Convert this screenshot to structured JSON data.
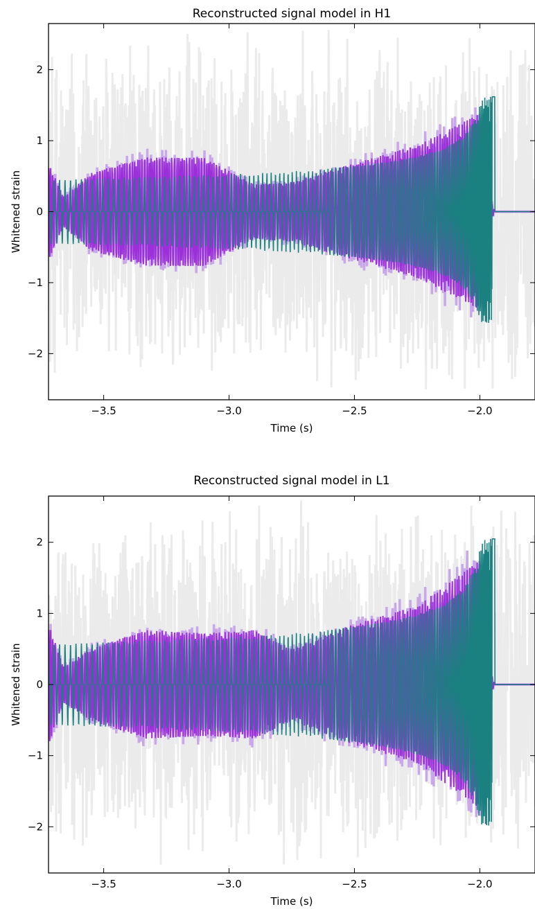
{
  "colors": {
    "noise": "#ebebeb",
    "band": "#c9a8ea",
    "signal": "#9b30d9",
    "model": "#1a8080",
    "axis": "#000000"
  },
  "chart_data": [
    {
      "type": "line",
      "title": "Reconstructed signal model in H1",
      "xlabel": "Time (s)",
      "ylabel": "Whitened strain",
      "xlim": [
        -3.72,
        -1.78
      ],
      "ylim": [
        -2.65,
        2.65
      ],
      "xticks": [
        "−3.5",
        "−3.0",
        "−2.5",
        "−2.0"
      ],
      "xtick_values": [
        -3.5,
        -3.0,
        -2.5,
        -2.0
      ],
      "yticks": [
        "−2",
        "−1",
        "0",
        "1",
        "2"
      ],
      "ytick_values": [
        -2,
        -1,
        0,
        1,
        2
      ],
      "grid": false,
      "series": [
        {
          "role": "whitened data",
          "color": "#ebebeb",
          "envelope": [
            [
              -3.72,
              2.6
            ],
            [
              -3.3,
              2.6
            ],
            [
              -2.5,
              2.6
            ],
            [
              -2.0,
              2.6
            ],
            [
              -1.78,
              2.6
            ]
          ]
        },
        {
          "role": "reconstructed signal band",
          "color": "#c9a8ea",
          "envelope": [
            [
              -3.72,
              0.8
            ],
            [
              -3.66,
              0.25
            ],
            [
              -3.55,
              0.65
            ],
            [
              -3.33,
              0.9
            ],
            [
              -3.1,
              0.9
            ],
            [
              -2.9,
              0.45
            ],
            [
              -2.75,
              0.5
            ],
            [
              -2.5,
              0.8
            ],
            [
              -2.25,
              1.1
            ],
            [
              -2.0,
              1.62
            ],
            [
              -1.95,
              0.1
            ],
            [
              -1.94,
              0.0
            ],
            [
              -1.78,
              0.0
            ]
          ]
        },
        {
          "role": "signal model",
          "color": "#1a8080",
          "peak_amplitude": 1.62,
          "peak_time": -2.0
        }
      ]
    },
    {
      "type": "line",
      "title": "Reconstructed signal model in L1",
      "xlabel": "Time (s)",
      "ylabel": "Whitened strain",
      "xlim": [
        -3.72,
        -1.78
      ],
      "ylim": [
        -2.65,
        2.65
      ],
      "xticks": [
        "−3.5",
        "−3.0",
        "−2.5",
        "−2.0"
      ],
      "xtick_values": [
        -3.5,
        -3.0,
        -2.5,
        -2.0
      ],
      "yticks": [
        "−2",
        "−1",
        "0",
        "1",
        "2"
      ],
      "ytick_values": [
        -2,
        -1,
        0,
        1,
        2
      ],
      "grid": false,
      "series": [
        {
          "role": "whitened data",
          "color": "#ebebeb",
          "envelope": [
            [
              -3.72,
              2.6
            ],
            [
              -3.3,
              2.6
            ],
            [
              -2.5,
              2.6
            ],
            [
              -2.0,
              2.6
            ],
            [
              -1.78,
              2.6
            ]
          ]
        },
        {
          "role": "reconstructed signal band",
          "color": "#c9a8ea",
          "envelope": [
            [
              -3.72,
              1.0
            ],
            [
              -3.66,
              0.3
            ],
            [
              -3.55,
              0.6
            ],
            [
              -3.33,
              0.9
            ],
            [
              -3.1,
              0.85
            ],
            [
              -2.9,
              0.9
            ],
            [
              -2.75,
              0.6
            ],
            [
              -2.5,
              1.0
            ],
            [
              -2.25,
              1.3
            ],
            [
              -2.0,
              2.05
            ],
            [
              -1.95,
              0.1
            ],
            [
              -1.94,
              0.0
            ],
            [
              -1.78,
              0.0
            ]
          ]
        },
        {
          "role": "signal model",
          "color": "#1a8080",
          "peak_amplitude": 2.05,
          "peak_time": -2.0
        }
      ]
    }
  ]
}
